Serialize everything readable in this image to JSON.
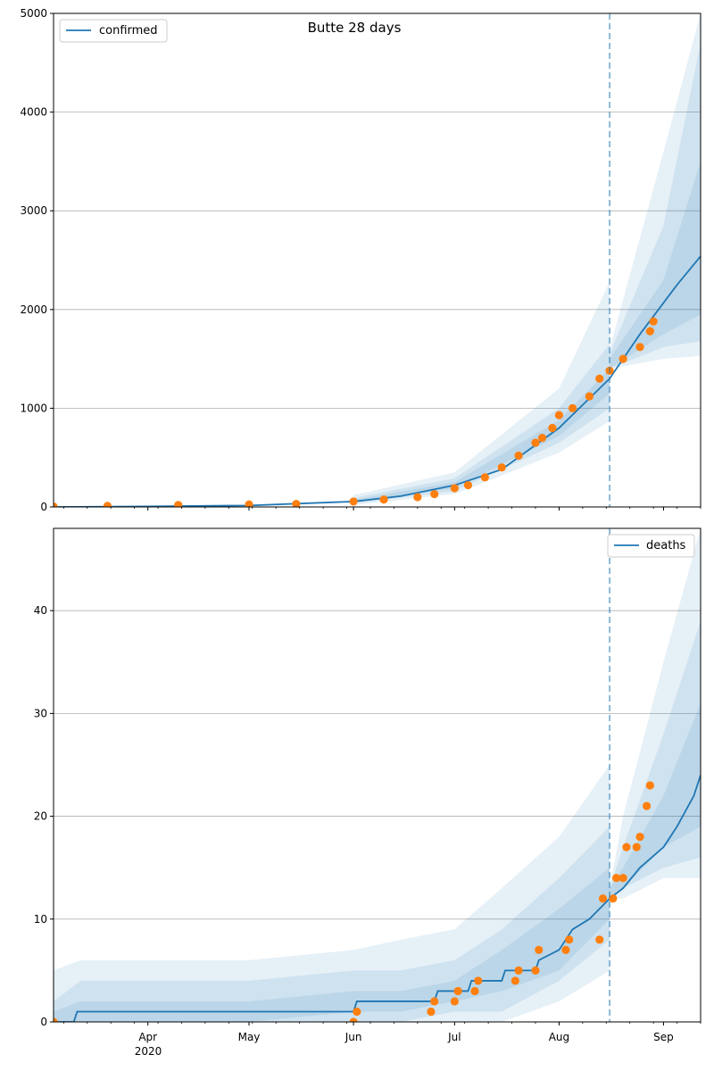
{
  "figure": {
    "title": "Butte 28 days",
    "x_axis": {
      "start": "2020-03-04",
      "end": "2020-09-12",
      "ticks": [
        {
          "date": "2020-04-01",
          "label": "Apr"
        },
        {
          "date": "2020-05-01",
          "label": "May"
        },
        {
          "date": "2020-06-01",
          "label": "Jun"
        },
        {
          "date": "2020-07-01",
          "label": "Jul"
        },
        {
          "date": "2020-08-01",
          "label": "Aug"
        },
        {
          "date": "2020-09-01",
          "label": "Sep"
        }
      ],
      "year_label": "2020",
      "forecast_start": "2020-08-16"
    }
  },
  "colors": {
    "model": "#1f77b4",
    "observed": "#ff7f0e",
    "band": "#1f77b4",
    "grid": "#b0b0b0"
  },
  "chart_data": [
    {
      "type": "line",
      "name": "confirmed",
      "legend": "confirmed",
      "legend_position": "upper-left",
      "ylim": [
        0,
        5000
      ],
      "yticks": [
        0,
        1000,
        2000,
        3000,
        4000,
        5000
      ],
      "grid": "horizontal",
      "model": {
        "dates": [
          "2020-03-04",
          "2020-04-01",
          "2020-05-01",
          "2020-06-01",
          "2020-06-15",
          "2020-07-01",
          "2020-07-15",
          "2020-08-01",
          "2020-08-16",
          "2020-08-25",
          "2020-09-05",
          "2020-09-12"
        ],
        "values": [
          0,
          5,
          15,
          55,
          110,
          220,
          380,
          800,
          1300,
          1750,
          2250,
          2540
        ]
      },
      "bands": [
        {
          "dates": [
            "2020-06-01",
            "2020-07-01",
            "2020-08-01",
            "2020-08-16"
          ],
          "lower": [
            20,
            130,
            550,
            870
          ],
          "upper": [
            120,
            350,
            1200,
            2280
          ]
        },
        {
          "dates": [
            "2020-06-01",
            "2020-07-01",
            "2020-08-01",
            "2020-08-16"
          ],
          "lower": [
            35,
            160,
            650,
            1000
          ],
          "upper": [
            90,
            290,
            1000,
            1650
          ]
        },
        {
          "dates": [
            "2020-06-01",
            "2020-07-01",
            "2020-08-01",
            "2020-08-16"
          ],
          "lower": [
            45,
            190,
            720,
            1150
          ],
          "upper": [
            70,
            250,
            880,
            1400
          ]
        },
        {
          "dates": [
            "2020-08-16",
            "2020-09-01",
            "2020-09-12"
          ],
          "lower": [
            1400,
            1500,
            1530
          ],
          "upper": [
            1600,
            3600,
            5000
          ]
        },
        {
          "dates": [
            "2020-08-16",
            "2020-09-01",
            "2020-09-12"
          ],
          "lower": [
            1400,
            1620,
            1680
          ],
          "upper": [
            1550,
            2850,
            4700
          ]
        },
        {
          "dates": [
            "2020-08-16",
            "2020-09-01",
            "2020-09-12"
          ],
          "lower": [
            1400,
            1750,
            1950
          ],
          "upper": [
            1500,
            2300,
            3500
          ]
        }
      ],
      "observed": {
        "dates": [
          "2020-03-04",
          "2020-03-20",
          "2020-04-10",
          "2020-05-01",
          "2020-05-15",
          "2020-06-01",
          "2020-06-10",
          "2020-06-20",
          "2020-06-25",
          "2020-07-01",
          "2020-07-05",
          "2020-07-10",
          "2020-07-15",
          "2020-07-20",
          "2020-07-25",
          "2020-07-27",
          "2020-07-30",
          "2020-08-01",
          "2020-08-05",
          "2020-08-10",
          "2020-08-13",
          "2020-08-16",
          "2020-08-20",
          "2020-08-25",
          "2020-08-28",
          "2020-08-29"
        ],
        "values": [
          5,
          10,
          20,
          25,
          30,
          55,
          75,
          100,
          130,
          190,
          220,
          300,
          400,
          520,
          650,
          700,
          800,
          930,
          1000,
          1120,
          1300,
          1380,
          1500,
          1620,
          1780,
          1880
        ]
      }
    },
    {
      "type": "line",
      "name": "deaths",
      "legend": "deaths",
      "legend_position": "upper-right",
      "ylim": [
        0,
        48
      ],
      "yticks": [
        0,
        10,
        20,
        30,
        40
      ],
      "grid": "horizontal",
      "model": {
        "dates": [
          "2020-03-04",
          "2020-03-10",
          "2020-03-11",
          "2020-06-01",
          "2020-06-02",
          "2020-06-25",
          "2020-06-26",
          "2020-07-05",
          "2020-07-06",
          "2020-07-15",
          "2020-07-16",
          "2020-07-25",
          "2020-07-26",
          "2020-08-01",
          "2020-08-05",
          "2020-08-10",
          "2020-08-16",
          "2020-08-20",
          "2020-08-25",
          "2020-09-01",
          "2020-09-05",
          "2020-09-10",
          "2020-09-12"
        ],
        "values": [
          0,
          0,
          1,
          1,
          2,
          2,
          3,
          3,
          4,
          4,
          5,
          5,
          6,
          7,
          9,
          10,
          12,
          13,
          15,
          17,
          19,
          22,
          24
        ]
      },
      "bands": [
        {
          "dates": [
            "2020-03-04",
            "2020-03-12",
            "2020-05-01",
            "2020-06-01",
            "2020-06-15",
            "2020-07-01",
            "2020-07-15",
            "2020-08-01",
            "2020-08-16"
          ],
          "lower": [
            0,
            0,
            0,
            0,
            0,
            0,
            0,
            2,
            5
          ],
          "upper": [
            5,
            6,
            6,
            7,
            8,
            9,
            13,
            18,
            25
          ]
        },
        {
          "dates": [
            "2020-03-04",
            "2020-03-12",
            "2020-05-01",
            "2020-06-01",
            "2020-06-15",
            "2020-07-01",
            "2020-07-15",
            "2020-08-01",
            "2020-08-16"
          ],
          "lower": [
            0,
            0,
            0,
            0,
            0,
            1,
            1,
            4,
            8
          ],
          "upper": [
            2,
            4,
            4,
            5,
            5,
            6,
            9,
            14,
            19
          ]
        },
        {
          "dates": [
            "2020-03-04",
            "2020-03-12",
            "2020-05-01",
            "2020-06-01",
            "2020-06-15",
            "2020-07-01",
            "2020-07-15",
            "2020-08-01",
            "2020-08-16"
          ],
          "lower": [
            0,
            0,
            0,
            1,
            1,
            2,
            3,
            5,
            10
          ],
          "upper": [
            1,
            2,
            2,
            3,
            3,
            4,
            7,
            11,
            15
          ]
        },
        {
          "dates": [
            "2020-08-16",
            "2020-08-20",
            "2020-09-01",
            "2020-09-12"
          ],
          "lower": [
            12,
            12,
            14,
            14
          ],
          "upper": [
            13,
            20,
            35,
            48
          ]
        },
        {
          "dates": [
            "2020-08-16",
            "2020-08-20",
            "2020-09-01",
            "2020-09-12"
          ],
          "lower": [
            12,
            13,
            15,
            16
          ],
          "upper": [
            13,
            17,
            28,
            39
          ]
        },
        {
          "dates": [
            "2020-08-16",
            "2020-08-20",
            "2020-09-01",
            "2020-09-12"
          ],
          "lower": [
            12,
            13,
            17,
            19
          ],
          "upper": [
            13,
            15,
            22,
            31
          ]
        }
      ],
      "observed": {
        "dates": [
          "2020-03-04",
          "2020-06-01",
          "2020-06-02",
          "2020-06-24",
          "2020-06-25",
          "2020-07-01",
          "2020-07-02",
          "2020-07-07",
          "2020-07-08",
          "2020-07-19",
          "2020-07-20",
          "2020-07-25",
          "2020-07-26",
          "2020-08-03",
          "2020-08-04",
          "2020-08-13",
          "2020-08-14",
          "2020-08-17",
          "2020-08-18",
          "2020-08-20",
          "2020-08-21",
          "2020-08-24",
          "2020-08-25",
          "2020-08-27",
          "2020-08-28"
        ],
        "values": [
          0,
          0,
          1,
          1,
          2,
          2,
          3,
          3,
          4,
          4,
          5,
          5,
          7,
          7,
          8,
          8,
          12,
          12,
          14,
          14,
          17,
          17,
          18,
          21,
          23
        ]
      }
    }
  ]
}
